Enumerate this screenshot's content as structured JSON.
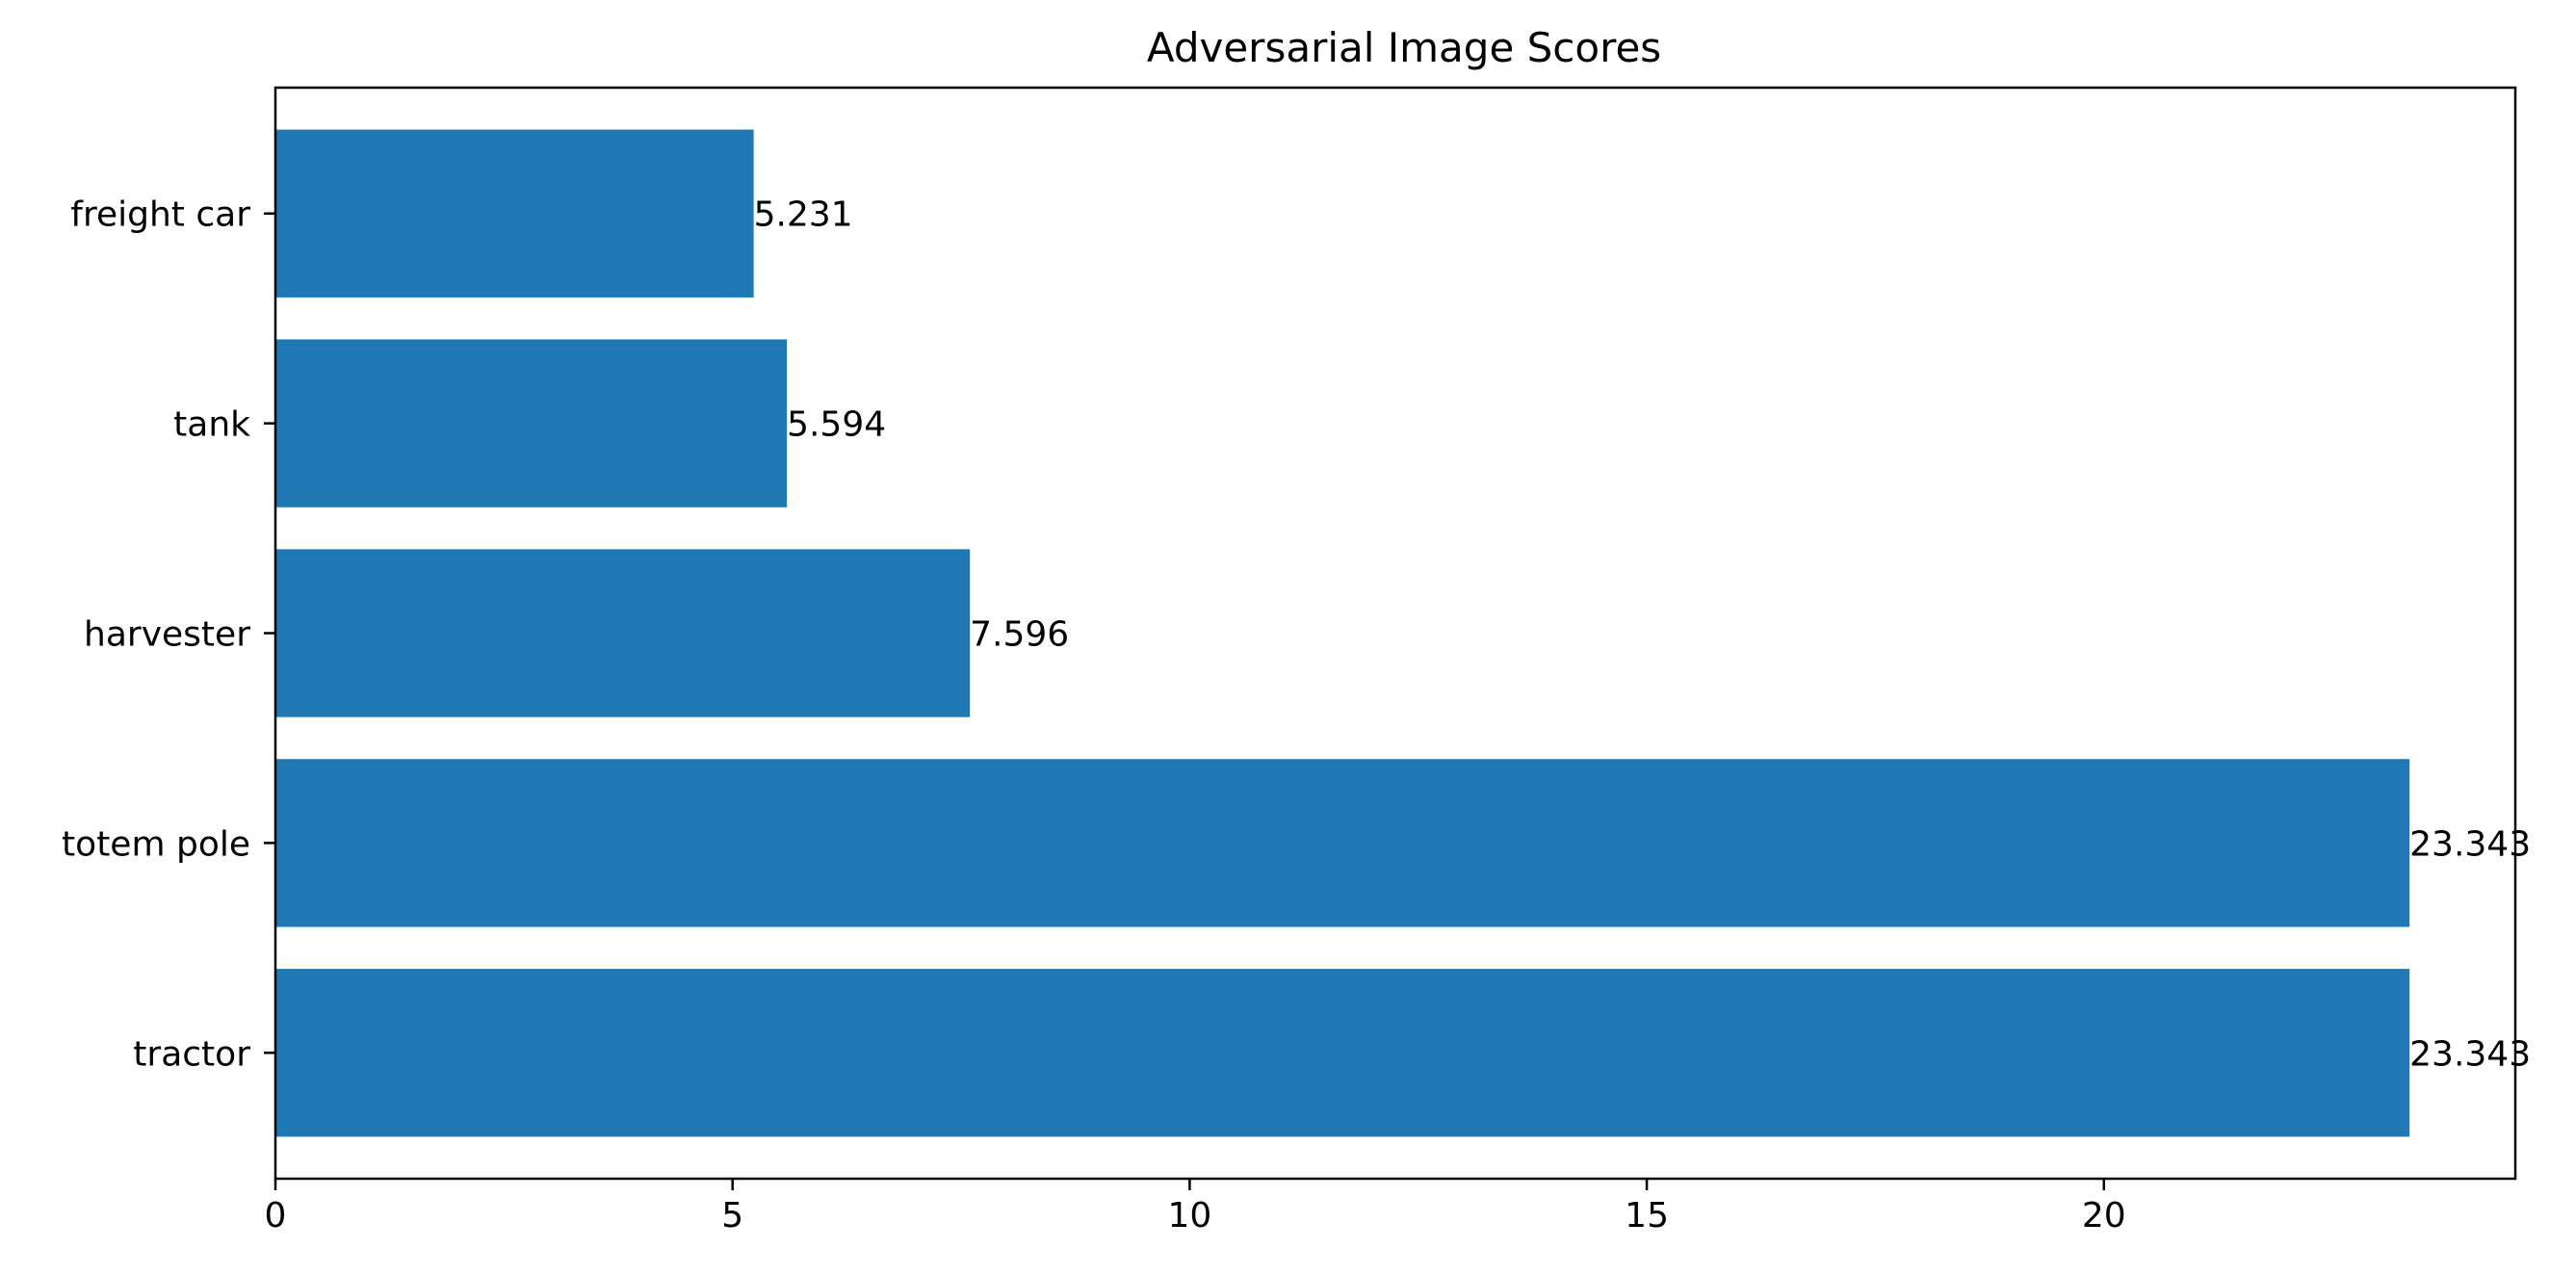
{
  "chart_data": {
    "type": "bar",
    "orientation": "horizontal",
    "title": "Adversarial Image Scores",
    "xlabel": "",
    "ylabel": "",
    "categories": [
      "tractor",
      "totem pole",
      "harvester",
      "tank",
      "freight car"
    ],
    "values": [
      23.343,
      23.343,
      7.596,
      5.594,
      5.231
    ],
    "data_labels": [
      "23.343",
      "23.343",
      "7.596",
      "5.594",
      "5.231"
    ],
    "xlim": [
      0,
      24.5
    ],
    "xticks": [
      0,
      5,
      10,
      15,
      20
    ],
    "xtick_labels": [
      "0",
      "5",
      "10",
      "15",
      "20"
    ],
    "grid": false,
    "legend": "none",
    "bar_color": "#1f77b4"
  }
}
